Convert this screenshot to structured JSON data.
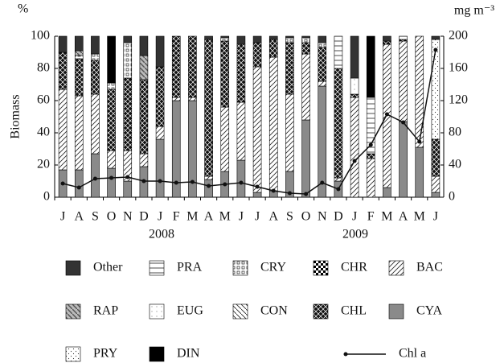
{
  "chart_data": {
    "type": "bar",
    "stacked": true,
    "ylabel": "Biomass",
    "ylabel_unit": "%",
    "y2label": "mg m⁻³",
    "annotations": [
      "2008",
      "2009"
    ],
    "categories": [
      "J",
      "A",
      "S",
      "O",
      "N",
      "D",
      "J",
      "F",
      "M",
      "A",
      "M",
      "J",
      "J",
      "A",
      "S",
      "O",
      "N",
      "D",
      "J",
      "F",
      "M",
      "A",
      "M",
      "J"
    ],
    "ylim": [
      0,
      100
    ],
    "yticks": [
      0,
      20,
      40,
      60,
      80,
      100
    ],
    "y2lim": [
      0,
      200
    ],
    "y2ticks": [
      0,
      40,
      80,
      120,
      160,
      200
    ],
    "series": [
      {
        "name": "CYA",
        "color": "#8a8a8a",
        "values": [
          17,
          17,
          27,
          18,
          10,
          19,
          36,
          60,
          60,
          11,
          16,
          23,
          3,
          4,
          16,
          48,
          69,
          10,
          0,
          0,
          6,
          47,
          31,
          3
        ]
      },
      {
        "name": "BAC",
        "color": "#222222",
        "values": [
          50,
          46,
          37,
          11,
          19,
          8,
          8,
          2,
          2,
          2,
          40,
          36,
          78,
          83,
          48,
          41,
          3,
          2,
          62,
          24,
          89,
          50,
          69,
          10
        ]
      },
      {
        "name": "CHL",
        "color": "#111111",
        "values": [
          23,
          23,
          21,
          38,
          45,
          46,
          37,
          38,
          38,
          85,
          41,
          36,
          15,
          11,
          32,
          7,
          21,
          68,
          2,
          3,
          2,
          1,
          0,
          23
        ]
      },
      {
        "name": "CRY",
        "color": "#222222",
        "values": [
          0,
          2,
          4,
          4,
          22,
          0,
          0,
          0,
          0,
          0,
          2,
          0,
          0,
          0,
          3,
          3,
          3,
          0,
          0,
          0,
          0,
          0,
          0,
          0
        ]
      },
      {
        "name": "RAP",
        "color": "#555555",
        "values": [
          0,
          3,
          0,
          0,
          0,
          15,
          0,
          0,
          0,
          0,
          0,
          0,
          0,
          0,
          0,
          0,
          0,
          0,
          0,
          0,
          0,
          0,
          0,
          0
        ]
      },
      {
        "name": "EUG",
        "color": "#444444",
        "values": [
          0,
          0,
          0,
          0,
          0,
          0,
          0,
          0,
          0,
          0,
          0,
          0,
          0,
          0,
          0,
          0,
          0,
          0,
          10,
          0,
          0,
          0,
          0,
          0
        ]
      },
      {
        "name": "PRA",
        "color": "#222222",
        "values": [
          0,
          0,
          0,
          0,
          0,
          0,
          0,
          0,
          0,
          0,
          0,
          0,
          0,
          0,
          0,
          0,
          0,
          20,
          0,
          35,
          0,
          2,
          0,
          0
        ]
      },
      {
        "name": "DIN",
        "color": "#000000",
        "values": [
          0,
          0,
          0,
          29,
          0,
          0,
          0,
          0,
          0,
          0,
          0,
          0,
          0,
          0,
          0,
          0,
          0,
          0,
          0,
          38,
          0,
          0,
          0,
          0
        ]
      },
      {
        "name": "CON",
        "color": "#222222",
        "values": [
          0,
          0,
          0,
          0,
          0,
          0,
          0,
          0,
          0,
          0,
          0,
          0,
          0,
          0,
          0,
          0,
          0,
          0,
          0,
          0,
          0,
          0,
          0,
          0
        ]
      },
      {
        "name": "CHR",
        "color": "#000000",
        "values": [
          0,
          0,
          0,
          0,
          0,
          0,
          0,
          0,
          0,
          0,
          0,
          0,
          0,
          0,
          0,
          0,
          0,
          0,
          0,
          0,
          0,
          0,
          0,
          0
        ]
      },
      {
        "name": "PRY",
        "color": "#333333",
        "values": [
          0,
          0,
          0,
          0,
          0,
          0,
          0,
          0,
          0,
          0,
          0,
          0,
          0,
          0,
          0,
          0,
          0,
          0,
          0,
          0,
          0,
          0,
          0,
          62
        ]
      },
      {
        "name": "Other",
        "color": "#333333",
        "values": [
          10,
          9,
          11,
          0,
          4,
          12,
          19,
          0,
          0,
          2,
          1,
          5,
          4,
          2,
          1,
          1,
          4,
          0,
          26,
          0,
          3,
          0,
          0,
          2
        ]
      },
      {
        "name": "Chl a",
        "type": "line",
        "axis": "y2",
        "color": "#111111",
        "values": [
          17,
          12,
          23,
          24,
          25,
          20,
          20,
          18,
          19,
          14,
          16,
          18,
          13,
          8,
          5,
          4,
          18,
          10,
          45,
          65,
          103,
          93,
          69,
          183
        ]
      }
    ]
  }
}
